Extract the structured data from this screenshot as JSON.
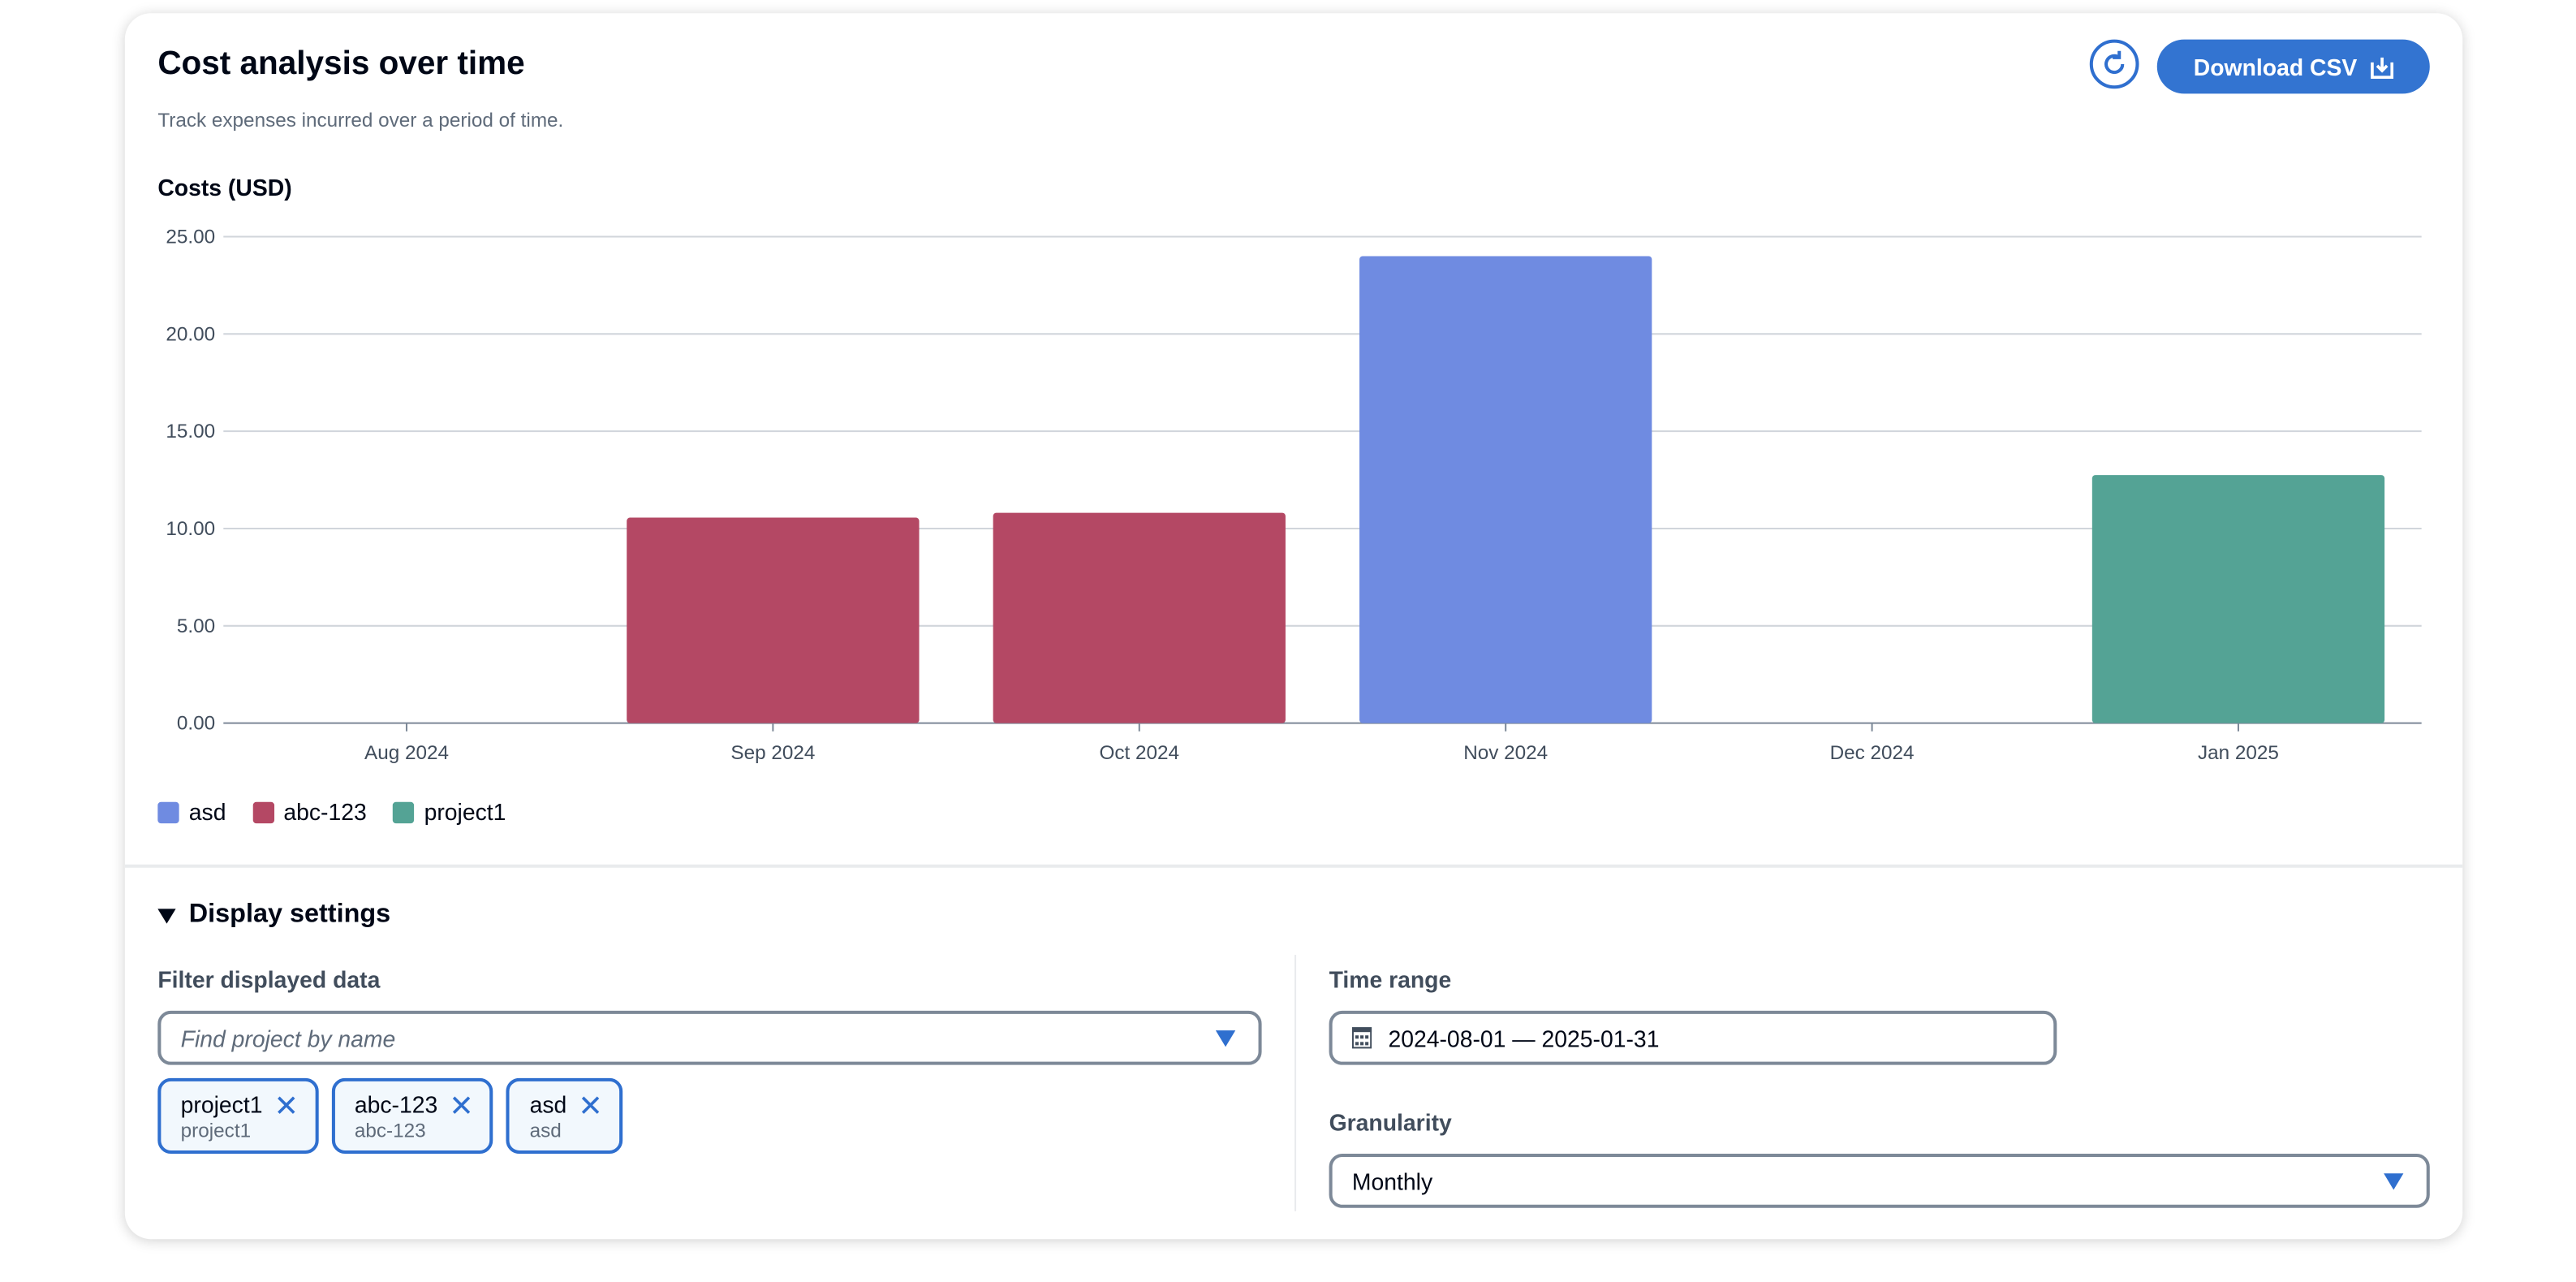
{
  "header": {
    "title": "Cost analysis over time",
    "subtitle": "Track expenses incurred over a period of time.",
    "download_label": "Download CSV",
    "refresh_icon": "refresh-icon",
    "download_icon": "download-icon"
  },
  "chart_data": {
    "type": "bar",
    "ylabel": "Costs (USD)",
    "ylim": [
      0,
      25
    ],
    "yticks": [
      "0.00",
      "5.00",
      "10.00",
      "15.00",
      "20.00",
      "25.00"
    ],
    "categories": [
      "Aug 2024",
      "Sep 2024",
      "Oct 2024",
      "Nov 2024",
      "Dec 2024",
      "Jan 2025"
    ],
    "grid": true,
    "legend_placement": "bottom-left",
    "series": [
      {
        "name": "asd",
        "color": "#6f8be1",
        "values": [
          0,
          0,
          0,
          24.0,
          0,
          0
        ]
      },
      {
        "name": "abc-123",
        "color": "#b44864",
        "values": [
          0,
          10.56,
          10.81,
          0,
          0,
          0
        ]
      },
      {
        "name": "project1",
        "color": "#54a395",
        "values": [
          0,
          0,
          0,
          0,
          0,
          12.75
        ]
      }
    ]
  },
  "settings": {
    "title": "Display settings",
    "filter_label": "Filter displayed data",
    "filter_placeholder": "Find project by name",
    "tokens": [
      {
        "name": "project1",
        "desc": "project1"
      },
      {
        "name": "abc-123",
        "desc": "abc-123"
      },
      {
        "name": "asd",
        "desc": "asd"
      }
    ],
    "time_range_label": "Time range",
    "time_range_value": "2024-08-01 — 2025-01-31",
    "granularity_label": "Granularity",
    "granularity_value": "Monthly"
  }
}
